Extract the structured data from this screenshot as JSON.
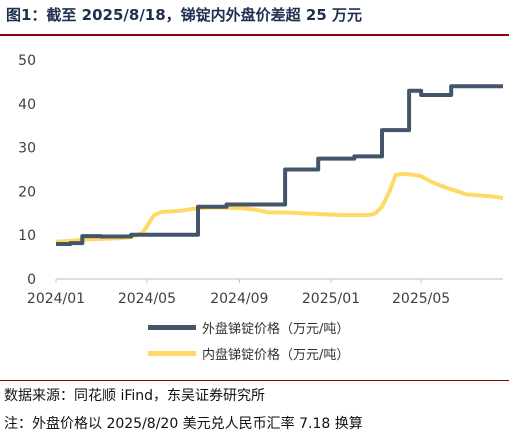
{
  "title": "图1：截至 2025/8/18，锑锭内外盘价差超 25 万元",
  "source": "数据来源：同花顺 iFind，东吴证券研究所",
  "note": "注：外盘价格以 2025/8/20 美元兑人民币汇率 7.18 换算",
  "chart_data": {
    "type": "line",
    "title": "",
    "xlabel": "",
    "ylabel": "",
    "ylim": [
      0,
      50
    ],
    "yticks": [
      0,
      10,
      20,
      30,
      40,
      50
    ],
    "xlim": [
      "2024-01-01",
      "2025-08-18"
    ],
    "xticks": [
      {
        "value": "2024-01-01",
        "label": "2024/01"
      },
      {
        "value": "2024-05-01",
        "label": "2024/05"
      },
      {
        "value": "2024-09-01",
        "label": "2024/09"
      },
      {
        "value": "2025-01-01",
        "label": "2025/01"
      },
      {
        "value": "2025-05-01",
        "label": "2025/05"
      }
    ],
    "grid": false,
    "legend": "bottom",
    "series": [
      {
        "name": "外盘锑锭价格（万元/吨）",
        "color": "#44546a",
        "style": "step",
        "x": [
          "2024-01-01",
          "2024-01-20",
          "2024-02-05",
          "2024-03-01",
          "2024-03-25",
          "2024-04-10",
          "2024-05-01",
          "2024-06-01",
          "2024-07-01",
          "2024-07-08",
          "2024-08-01",
          "2024-08-15",
          "2024-10-01",
          "2024-11-01",
          "2024-11-20",
          "2024-12-15",
          "2025-01-10",
          "2025-02-01",
          "2025-02-20",
          "2025-03-10",
          "2025-04-01",
          "2025-04-15",
          "2025-05-01",
          "2025-05-20",
          "2025-06-10",
          "2025-07-01",
          "2025-08-18"
        ],
        "values": [
          8.0,
          8.2,
          9.8,
          9.7,
          9.7,
          10.1,
          10.1,
          10.1,
          10.1,
          16.5,
          16.5,
          17.0,
          17.0,
          25.0,
          25.0,
          27.5,
          27.5,
          28.0,
          28.0,
          34.0,
          34.0,
          43.0,
          42.0,
          42.0,
          44.0,
          44.0,
          44.0
        ]
      },
      {
        "name": "内盘锑锭价格（万元/吨）",
        "color": "#ffd966",
        "style": "line",
        "x": [
          "2024-01-01",
          "2024-01-20",
          "2024-02-05",
          "2024-02-20",
          "2024-03-10",
          "2024-03-25",
          "2024-04-10",
          "2024-04-25",
          "2024-05-01",
          "2024-05-10",
          "2024-05-20",
          "2024-06-01",
          "2024-06-15",
          "2024-07-01",
          "2024-07-20",
          "2024-08-10",
          "2024-09-01",
          "2024-09-20",
          "2024-10-10",
          "2024-11-01",
          "2024-11-20",
          "2024-12-10",
          "2025-01-01",
          "2025-01-20",
          "2025-02-10",
          "2025-02-20",
          "2025-03-01",
          "2025-03-10",
          "2025-03-20",
          "2025-03-28",
          "2025-04-05",
          "2025-04-20",
          "2025-05-01",
          "2025-05-10",
          "2025-05-20",
          "2025-06-01",
          "2025-06-15",
          "2025-07-01",
          "2025-07-15",
          "2025-08-01",
          "2025-08-18"
        ],
        "values": [
          8.5,
          8.7,
          9.0,
          9.1,
          9.2,
          9.3,
          9.6,
          10.5,
          12.0,
          14.5,
          15.3,
          15.4,
          15.6,
          16.0,
          16.3,
          16.3,
          16.2,
          15.9,
          15.2,
          15.2,
          15.0,
          14.9,
          14.7,
          14.6,
          14.6,
          14.6,
          15.0,
          16.5,
          20.0,
          23.7,
          24.0,
          23.8,
          23.5,
          22.6,
          21.8,
          21.0,
          20.2,
          19.3,
          19.1,
          18.9,
          18.5
        ]
      }
    ]
  }
}
